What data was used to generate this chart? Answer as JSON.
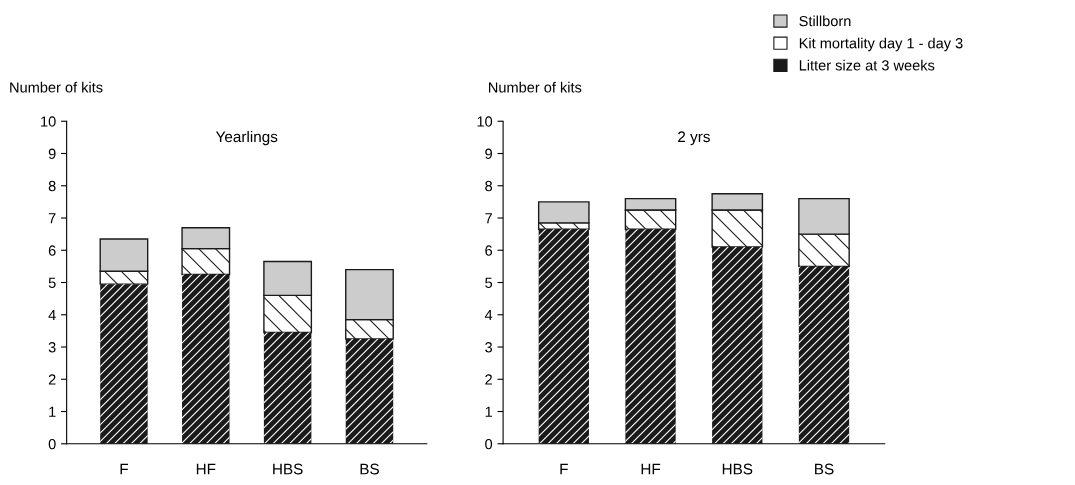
{
  "chart_data": [
    {
      "type": "bar",
      "title": "Yearlings",
      "ylabel": "Number of kits",
      "categories": [
        "F",
        "HF",
        "HBS",
        "BS"
      ],
      "stacked": true,
      "ylim": [
        0,
        10
      ],
      "yticks": [
        0,
        1,
        2,
        3,
        4,
        5,
        6,
        7,
        8,
        9,
        10
      ],
      "grid": false,
      "legend": false,
      "series": [
        {
          "color": "#1a1a1a",
          "values": [
            4.95,
            5.25,
            3.45,
            3.25
          ]
        },
        {
          "color": "#ffffff",
          "values": [
            0.4,
            0.8,
            1.15,
            0.6
          ]
        },
        {
          "color": "#cccccc",
          "values": [
            1.0,
            0.65,
            1.05,
            1.55
          ]
        }
      ]
    },
    {
      "type": "bar",
      "title": "2 yrs",
      "ylabel": "Number of kits",
      "categories": [
        "F",
        "HF",
        "HBS",
        "BS"
      ],
      "stacked": true,
      "ylim": [
        0,
        10
      ],
      "yticks": [
        0,
        1,
        2,
        3,
        4,
        5,
        6,
        7,
        8,
        9,
        10
      ],
      "grid": false,
      "legend": "top right",
      "series": [
        {
          "name": "Litter size at 3 weeks",
          "color": "#1a1a1a",
          "values": [
            6.65,
            6.65,
            6.1,
            5.5
          ]
        },
        {
          "name": "Kit mortality day 1 - day 3",
          "color": "#ffffff",
          "values": [
            0.2,
            0.6,
            1.15,
            1.0
          ]
        },
        {
          "name": "Stillborn",
          "color": "#cccccc",
          "values": [
            0.65,
            0.35,
            0.5,
            1.1
          ]
        }
      ]
    }
  ]
}
